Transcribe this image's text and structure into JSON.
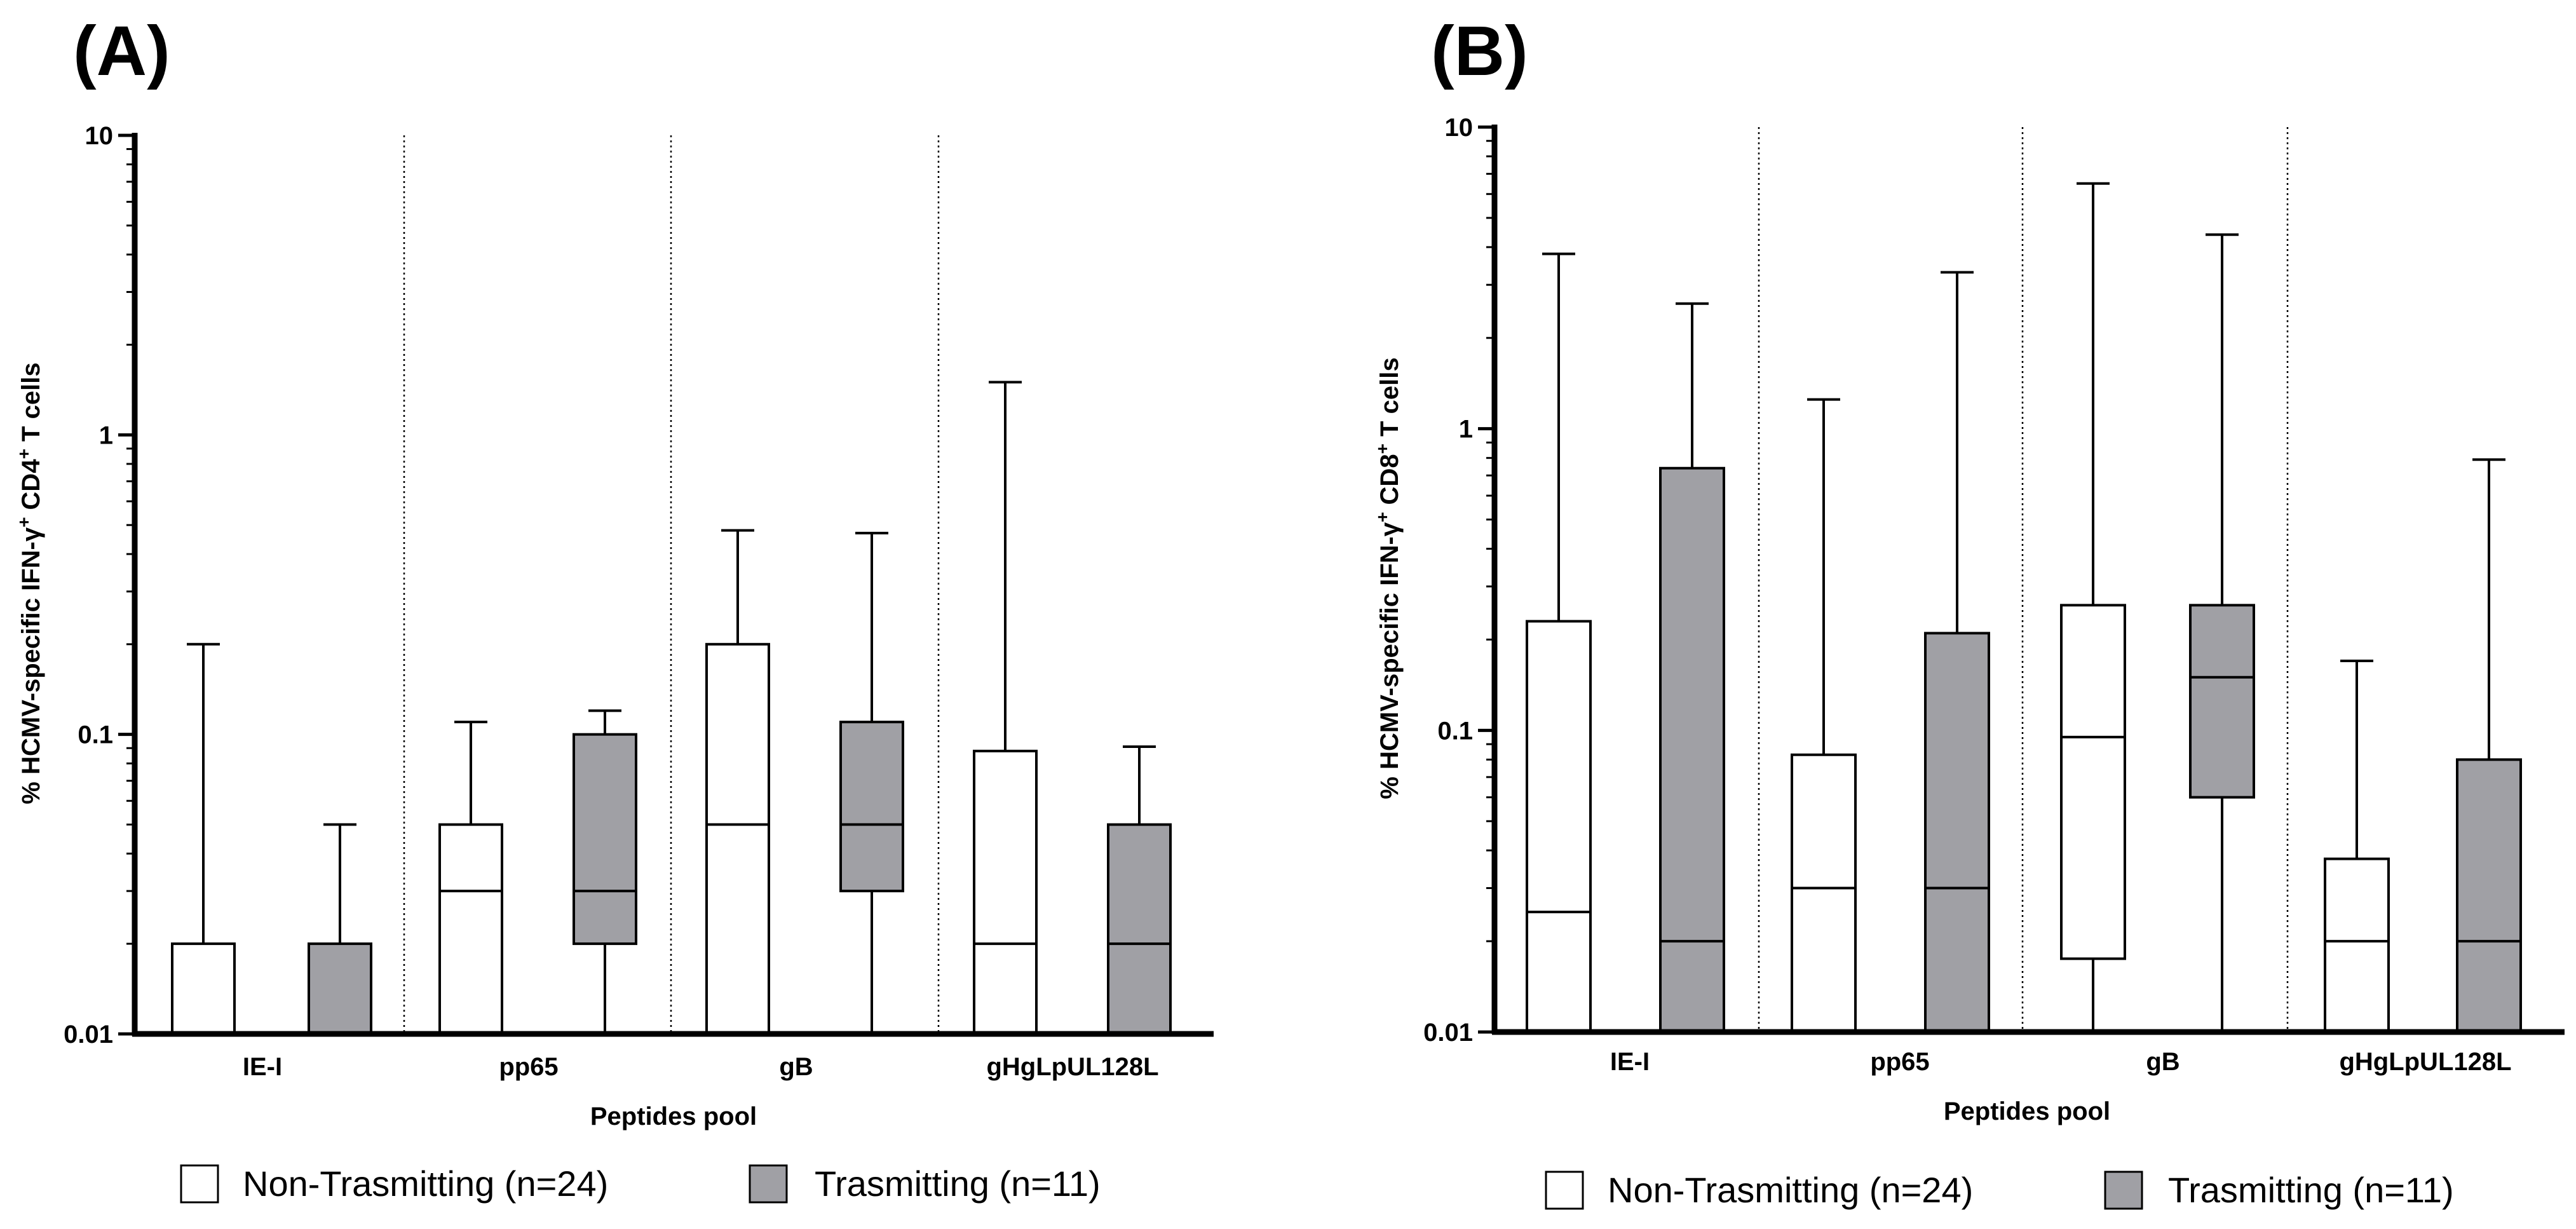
{
  "colors": {
    "non_trasmitting": "#ffffff",
    "trasmitting": "#a0a0a5",
    "stroke": "#000000"
  },
  "panels": [
    {
      "label": "(A)"
    },
    {
      "label": "(B)"
    }
  ],
  "chart_data": [
    {
      "type": "boxplot",
      "panel": "(A)",
      "ylabel": "% HCMV-specific  IFN-γ+ CD4+ T cells",
      "xlabel": "Peptides pool",
      "yscale": "log",
      "ylim": [
        0.01,
        10
      ],
      "yticks": [
        "0.01",
        "0.1",
        "1",
        "10"
      ],
      "categories": [
        "IE-I",
        "pp65",
        "gB",
        "gHgLpUL128L"
      ],
      "legend": [
        "Non-Trasmitting (n=24)",
        "Trasmitting (n=11)"
      ],
      "series": [
        {
          "name": "Non-Trasmitting (n=24)",
          "boxes": [
            {
              "min": 0.01,
              "q1": 0.01,
              "median": 0.01,
              "q3": 0.02,
              "max": 0.2
            },
            {
              "min": 0.01,
              "q1": 0.01,
              "median": 0.03,
              "q3": 0.05,
              "max": 0.11
            },
            {
              "min": 0.01,
              "q1": 0.01,
              "median": 0.05,
              "q3": 0.2,
              "max": 0.48
            },
            {
              "min": 0.01,
              "q1": 0.01,
              "median": 0.02,
              "q3": 0.088,
              "max": 1.5
            }
          ]
        },
        {
          "name": "Trasmitting (n=11)",
          "boxes": [
            {
              "min": 0.01,
              "q1": 0.01,
              "median": 0.01,
              "q3": 0.02,
              "max": 0.05
            },
            {
              "min": 0.01,
              "q1": 0.02,
              "median": 0.03,
              "q3": 0.1,
              "max": 0.12
            },
            {
              "min": 0.01,
              "q1": 0.03,
              "median": 0.05,
              "q3": 0.11,
              "max": 0.47
            },
            {
              "min": 0.01,
              "q1": 0.01,
              "median": 0.02,
              "q3": 0.05,
              "max": 0.091
            }
          ]
        }
      ]
    },
    {
      "type": "boxplot",
      "panel": "(B)",
      "ylabel": "% HCMV-specific IFN-γ+ CD8+ T cells",
      "xlabel": "Peptides pool",
      "yscale": "log",
      "ylim": [
        0.01,
        10
      ],
      "yticks": [
        "0.01",
        "0.1",
        "1",
        "10"
      ],
      "categories": [
        "IE-I",
        "pp65",
        "gB",
        "gHgLpUL128L"
      ],
      "legend": [
        "Non-Trasmitting (n=24)",
        "Trasmitting (n=11)"
      ],
      "series": [
        {
          "name": "Non-Trasmitting (n=24)",
          "boxes": [
            {
              "min": 0.01,
              "q1": 0.01,
              "median": 0.025,
              "q3": 0.23,
              "max": 3.8
            },
            {
              "min": 0.01,
              "q1": 0.01,
              "median": 0.03,
              "q3": 0.083,
              "max": 1.25
            },
            {
              "min": 0.01,
              "q1": 0.0175,
              "median": 0.095,
              "q3": 0.26,
              "max": 6.5
            },
            {
              "min": 0.01,
              "q1": 0.01,
              "median": 0.02,
              "q3": 0.0375,
              "max": 0.17
            }
          ]
        },
        {
          "name": "Trasmitting (n=11)",
          "boxes": [
            {
              "min": 0.01,
              "q1": 0.01,
              "median": 0.02,
              "q3": 0.74,
              "max": 2.6
            },
            {
              "min": 0.01,
              "q1": 0.01,
              "median": 0.03,
              "q3": 0.21,
              "max": 3.3
            },
            {
              "min": 0.01,
              "q1": 0.06,
              "median": 0.15,
              "q3": 0.26,
              "max": 4.4
            },
            {
              "min": 0.01,
              "q1": 0.01,
              "median": 0.02,
              "q3": 0.08,
              "max": 0.79
            }
          ]
        }
      ]
    }
  ]
}
